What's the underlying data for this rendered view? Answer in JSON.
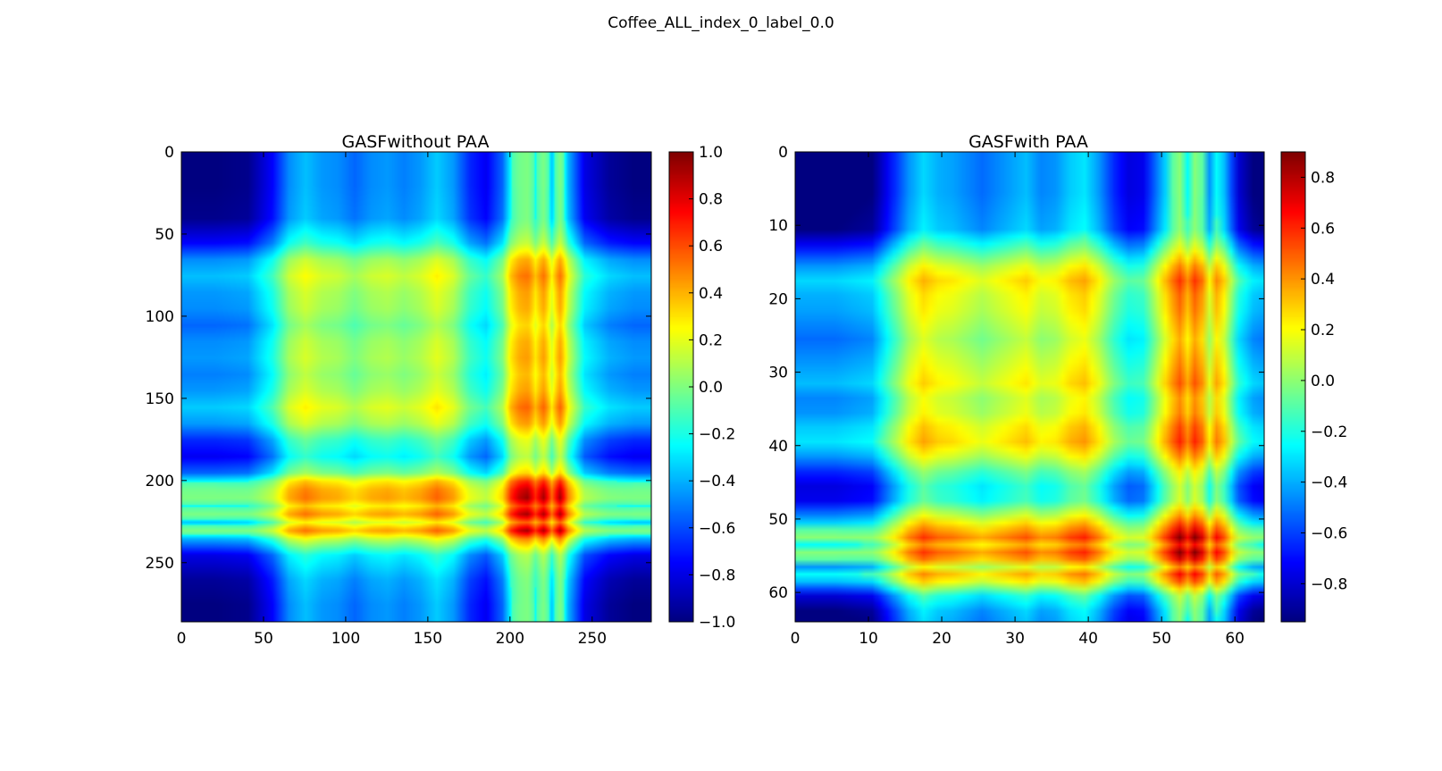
{
  "figure": {
    "suptitle": "Coffee_ALL_index_0_label_0.0"
  },
  "colormap": {
    "name": "jet",
    "stops": [
      "#00007f",
      "#0000ff",
      "#00ffff",
      "#ffff00",
      "#ff0000",
      "#7f0000"
    ]
  },
  "chart_data": [
    {
      "type": "heatmap",
      "title": "GASFwithout PAA",
      "matrix_size": 286,
      "xlim": [
        0,
        286
      ],
      "ylim": [
        286,
        0
      ],
      "x_ticks": [
        0,
        50,
        100,
        150,
        200,
        250
      ],
      "y_ticks": [
        0,
        50,
        100,
        150,
        200,
        250
      ],
      "colorbar": {
        "vmin": -1.0,
        "vmax": 1.0,
        "ticks": [
          "1.0",
          "0.8",
          "0.6",
          "0.4",
          "0.2",
          "0.0",
          "−0.2",
          "−0.4",
          "−0.6",
          "−0.8",
          "−1.0"
        ],
        "tick_values": [
          1.0,
          0.8,
          0.6,
          0.4,
          0.2,
          0.0,
          -0.2,
          -0.4,
          -0.6,
          -0.8,
          -1.0
        ]
      },
      "series_profile": {
        "x": [
          0,
          20,
          40,
          55,
          65,
          75,
          85,
          95,
          105,
          115,
          125,
          135,
          145,
          155,
          165,
          175,
          185,
          195,
          200,
          205,
          210,
          215,
          220,
          225,
          230,
          235,
          245,
          260,
          275,
          285
        ],
        "g": [
          -1.0,
          -1.0,
          -0.95,
          -0.5,
          0.05,
          0.25,
          0.1,
          0.05,
          -0.1,
          0.05,
          0.1,
          0.0,
          0.1,
          0.3,
          0.1,
          -0.35,
          -0.55,
          -0.1,
          0.5,
          0.8,
          0.95,
          0.5,
          0.9,
          0.3,
          0.9,
          0.2,
          -0.6,
          -0.9,
          -1.0,
          -1.0
        ]
      }
    },
    {
      "type": "heatmap",
      "title": "GASFwith PAA",
      "matrix_size": 64,
      "xlim": [
        0,
        64
      ],
      "ylim": [
        64,
        0
      ],
      "x_ticks": [
        0,
        10,
        20,
        30,
        40,
        50,
        60
      ],
      "y_ticks": [
        0,
        10,
        20,
        30,
        40,
        50,
        60
      ],
      "colorbar": {
        "vmin": -0.95,
        "vmax": 0.9,
        "ticks": [
          "0.8",
          "0.6",
          "0.4",
          "0.2",
          "0.0",
          "−0.2",
          "−0.4",
          "−0.6",
          "−0.8"
        ],
        "tick_values": [
          0.8,
          0.6,
          0.4,
          0.2,
          0.0,
          -0.2,
          -0.4,
          -0.6,
          -0.8
        ]
      },
      "series_profile": {
        "x": [
          0,
          5,
          10,
          13,
          15,
          17,
          19,
          21,
          23,
          25,
          27,
          29,
          31,
          33,
          35,
          37,
          39,
          41,
          43,
          45,
          47,
          49,
          51,
          52,
          53,
          54,
          55,
          56,
          57,
          58,
          60,
          62,
          63
        ],
        "g": [
          -1.0,
          -1.0,
          -0.9,
          -0.3,
          0.1,
          0.35,
          0.2,
          0.15,
          0.05,
          -0.05,
          0.05,
          0.15,
          0.25,
          0.05,
          0.1,
          0.3,
          0.4,
          0.1,
          -0.3,
          -0.55,
          -0.5,
          0.05,
          0.6,
          0.95,
          0.5,
          0.9,
          0.6,
          0.1,
          0.5,
          0.25,
          -0.6,
          -0.9,
          -0.95
        ]
      }
    }
  ]
}
